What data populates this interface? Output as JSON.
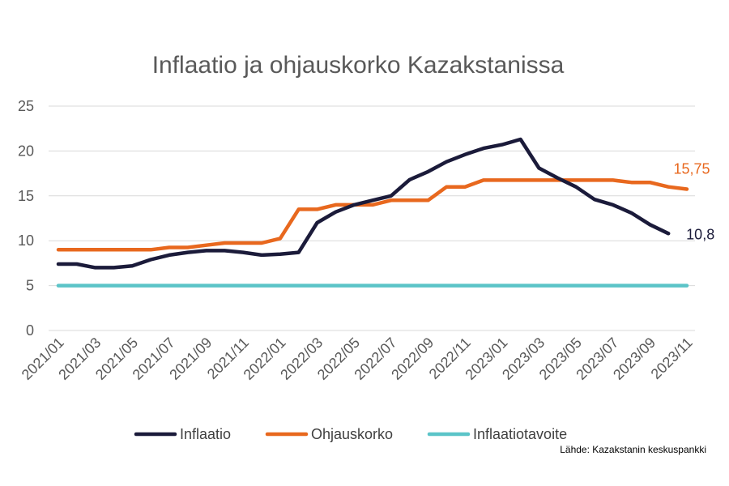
{
  "chart_data": {
    "type": "line",
    "title": "Inflaatio ja ohjauskorko Kazakstanissa",
    "source": "Lähde: Kazakstanin keskuspankki",
    "ylim": [
      0,
      25
    ],
    "yticks": [
      "0",
      "5",
      "10",
      "15",
      "20",
      "25"
    ],
    "xticks": [
      "2021/01",
      "2021/03",
      "2021/05",
      "2021/07",
      "2021/09",
      "2021/11",
      "2022/01",
      "2022/03",
      "2022/05",
      "2022/07",
      "2022/09",
      "2022/11",
      "2023/01",
      "2023/03",
      "2023/05",
      "2023/07",
      "2023/09",
      "2023/11"
    ],
    "grid": true,
    "legend_position": "bottom",
    "series": [
      {
        "name": "Inflaatio",
        "color": "#1b1b3a",
        "end_label": "10,8",
        "values": [
          7.4,
          7.4,
          7.0,
          7.0,
          7.2,
          7.9,
          8.4,
          8.7,
          8.9,
          8.9,
          8.7,
          8.4,
          8.5,
          8.7,
          12.0,
          13.2,
          14.0,
          14.5,
          15.0,
          16.8,
          17.7,
          18.8,
          19.6,
          20.3,
          20.7,
          21.3,
          18.1,
          17.0,
          16.0,
          14.6,
          14.0,
          13.1,
          11.8,
          10.8
        ]
      },
      {
        "name": "Ohjauskorko",
        "color": "#e8681e",
        "end_label": "15,75",
        "values": [
          9.0,
          9.0,
          9.0,
          9.0,
          9.0,
          9.0,
          9.25,
          9.25,
          9.5,
          9.75,
          9.75,
          9.75,
          10.25,
          13.5,
          13.5,
          14.0,
          14.0,
          14.0,
          14.5,
          14.5,
          14.5,
          16.0,
          16.0,
          16.75,
          16.75,
          16.75,
          16.75,
          16.75,
          16.75,
          16.75,
          16.75,
          16.5,
          16.5,
          16.0,
          15.75
        ]
      },
      {
        "name": "Inflaatiotavoite",
        "color": "#5bc4c8",
        "end_label": "",
        "values": [
          5,
          5,
          5,
          5,
          5,
          5,
          5,
          5,
          5,
          5,
          5,
          5,
          5,
          5,
          5,
          5,
          5,
          5,
          5,
          5,
          5,
          5,
          5,
          5,
          5,
          5,
          5,
          5,
          5,
          5,
          5,
          5,
          5,
          5,
          5
        ]
      }
    ]
  }
}
